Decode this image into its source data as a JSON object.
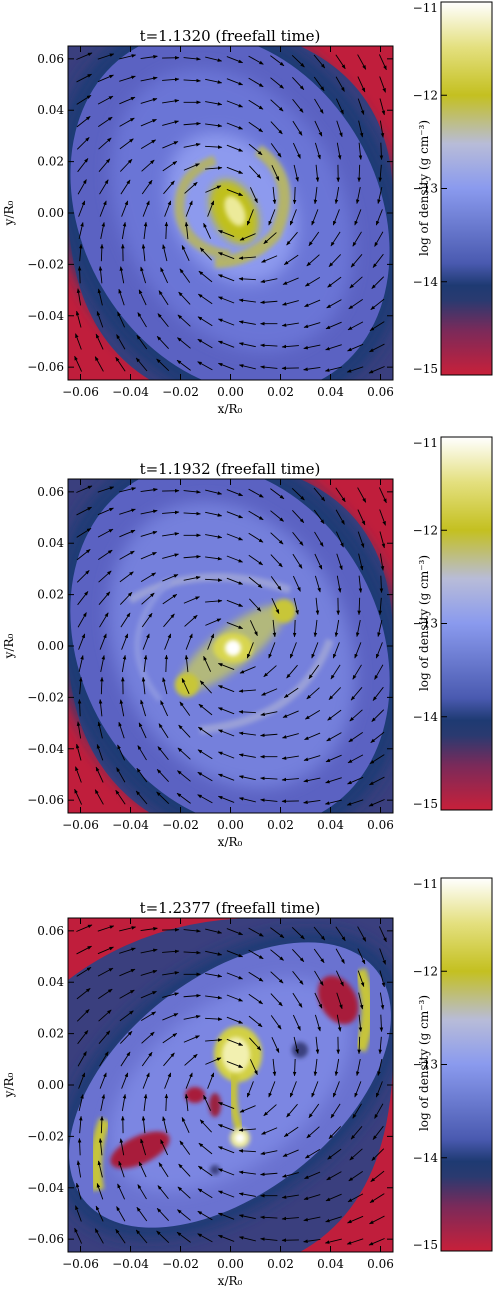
{
  "chart_data": [
    {
      "type": "heatmap",
      "title": "t=1.1320 (freefall time)",
      "xlabel": "x/R₀",
      "ylabel": "y/R₀",
      "xlim": [
        -0.065,
        0.065
      ],
      "ylim": [
        -0.065,
        0.065
      ],
      "x_ticks": [
        "−0.06",
        "−0.04",
        "−0.02",
        "0.00",
        "0.02",
        "0.04",
        "0.06"
      ],
      "y_ticks": [
        "0.06",
        "0.04",
        "0.02",
        "0.00",
        "−0.02",
        "−0.04",
        "−0.06"
      ],
      "colorbar": {
        "label": "log of density (g cm⁻³)",
        "range": [
          -15,
          -11
        ],
        "ticks": [
          "−11",
          "−12",
          "−13",
          "−14",
          "−15"
        ]
      },
      "features": {
        "pattern": "two-arm spiral",
        "cores": [
          {
            "x": 0.0,
            "y": 0.0,
            "log_density": -12.0
          }
        ]
      },
      "vector_field": "rotation with inflow"
    },
    {
      "type": "heatmap",
      "title": "t=1.1932 (freefall time)",
      "xlabel": "x/R₀",
      "ylabel": "y/R₀",
      "xlim": [
        -0.065,
        0.065
      ],
      "ylim": [
        -0.065,
        0.065
      ],
      "x_ticks": [
        "−0.06",
        "−0.04",
        "−0.02",
        "0.00",
        "0.02",
        "0.04",
        "0.06"
      ],
      "y_ticks": [
        "0.06",
        "0.04",
        "0.02",
        "0.00",
        "−0.02",
        "−0.04",
        "−0.06"
      ],
      "colorbar": {
        "label": "log of density (g cm⁻³)",
        "range": [
          -15,
          -11
        ],
        "ticks": [
          "−11",
          "−12",
          "−13",
          "−14",
          "−15"
        ]
      },
      "features": {
        "pattern": "bar with spiral arms",
        "cores": [
          {
            "x": 0.0,
            "y": 0.0,
            "log_density": -11.2
          },
          {
            "x": 0.019,
            "y": 0.015,
            "log_density": -12.2
          },
          {
            "x": -0.019,
            "y": -0.013,
            "log_density": -12.2
          }
        ]
      },
      "vector_field": "rotation with inflow"
    },
    {
      "type": "heatmap",
      "title": "t=1.2377 (freefall time)",
      "xlabel": "x/R₀",
      "ylabel": "y/R₀",
      "xlim": [
        -0.065,
        0.065
      ],
      "ylim": [
        -0.065,
        0.065
      ],
      "x_ticks": [
        "−0.06",
        "−0.04",
        "−0.02",
        "0.00",
        "0.02",
        "0.04",
        "0.06"
      ],
      "y_ticks": [
        "0.06",
        "0.04",
        "0.02",
        "0.00",
        "−0.02",
        "−0.04",
        "−0.06"
      ],
      "colorbar": {
        "label": "log of density (g cm⁻³)",
        "range": [
          -15,
          -11
        ],
        "ticks": [
          "−11",
          "−12",
          "−13",
          "−14",
          "−15"
        ]
      },
      "features": {
        "pattern": "fragmented disk",
        "cores": [
          {
            "x": 0.002,
            "y": 0.008,
            "log_density": -11.3
          },
          {
            "x": 0.005,
            "y": -0.02,
            "log_density": -11.5
          },
          {
            "x": 0.052,
            "y": 0.028,
            "log_density": -12.3
          },
          {
            "x": -0.051,
            "y": -0.034,
            "log_density": -12.3
          }
        ]
      },
      "vector_field": "rotation with inflow"
    }
  ]
}
